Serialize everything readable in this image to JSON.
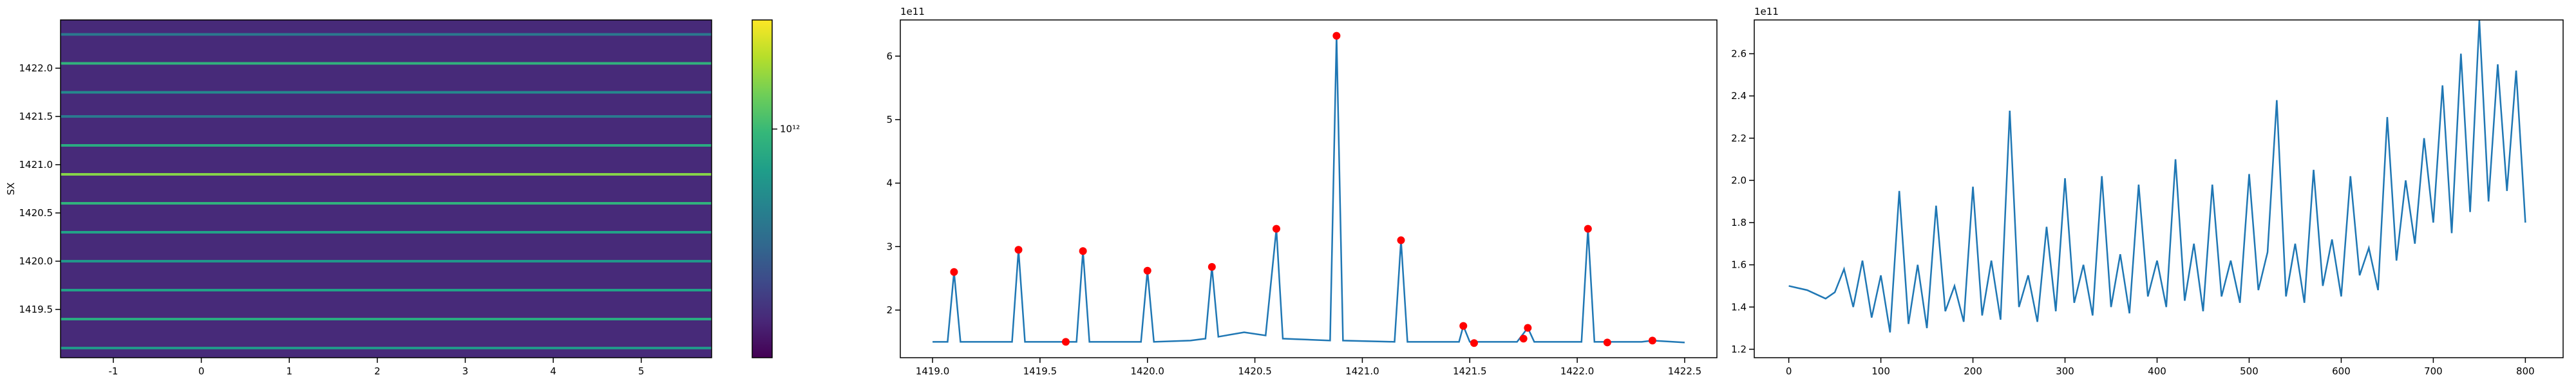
{
  "chart_data": [
    {
      "type": "heatmap",
      "y_label": "SX",
      "xlim": [
        -1.6,
        5.8
      ],
      "xticks": [
        -1,
        0,
        1,
        2,
        3,
        4,
        5
      ],
      "ylim": [
        1419.0,
        1422.5
      ],
      "yticks": [
        {
          "value": 1419.5,
          "label": "1419.5"
        },
        {
          "value": 1420.0,
          "label": "1420.0"
        },
        {
          "value": 1420.5,
          "label": "1420.5"
        },
        {
          "value": 1421.0,
          "label": "1421.0"
        },
        {
          "value": 1421.5,
          "label": "1421.5"
        },
        {
          "value": 1422.0,
          "label": "1422.0"
        }
      ],
      "background": 150000000000.0,
      "stripes": {
        "y": [
          1419.1,
          1419.4,
          1419.7,
          1420.0,
          1420.3,
          1420.6,
          1420.9,
          1421.2,
          1421.5,
          1421.75,
          1422.05,
          1422.35
        ],
        "values": [
          600000000000.0,
          800000000000.0,
          700000000000.0,
          600000000000.0,
          700000000000.0,
          900000000000.0,
          1600000000000.0,
          800000000000.0,
          400000000000.0,
          500000000000.0,
          900000000000.0,
          400000000000.0
        ]
      },
      "colorbar": {
        "log": true,
        "lim": [
          100000000000.0,
          3000000000000.0
        ],
        "ticks": [
          {
            "value": 1000000000000.0,
            "label": "10¹²"
          }
        ]
      }
    },
    {
      "type": "line",
      "offset_label": "1e11",
      "xlim": [
        1418.85,
        1422.65
      ],
      "xticks": [
        {
          "value": 1419.0,
          "label": "1419.0"
        },
        1419.5,
        {
          "value": 1420.0,
          "label": "1420.0"
        },
        1420.5,
        {
          "value": 1421.0,
          "label": "1421.0"
        },
        1421.5,
        {
          "value": 1422.0,
          "label": "1422.0"
        },
        1422.5
      ],
      "ylim": [
        1.25,
        6.57
      ],
      "yticks": [
        2,
        3,
        4,
        5,
        6
      ],
      "series": [
        {
          "color": "#1f77b4",
          "style": "line",
          "x": [
            1419.0,
            1419.07,
            1419.1,
            1419.13,
            1419.37,
            1419.4,
            1419.43,
            1419.67,
            1419.7,
            1419.73,
            1419.97,
            1420.0,
            1420.03,
            1420.2,
            1420.27,
            1420.3,
            1420.33,
            1420.45,
            1420.55,
            1420.6,
            1420.63,
            1420.85,
            1420.88,
            1420.91,
            1421.15,
            1421.18,
            1421.21,
            1421.45,
            1421.47,
            1421.5,
            1421.72,
            1421.77,
            1421.8,
            1422.02,
            1422.05,
            1422.08,
            1422.3,
            1422.35,
            1422.5
          ],
          "values": [
            1.5,
            1.5,
            2.6,
            1.5,
            1.5,
            2.95,
            1.5,
            1.5,
            2.93,
            1.5,
            1.5,
            2.62,
            1.5,
            1.52,
            1.55,
            2.68,
            1.58,
            1.65,
            1.6,
            3.28,
            1.55,
            1.52,
            6.32,
            1.52,
            1.5,
            3.1,
            1.5,
            1.5,
            1.75,
            1.5,
            1.5,
            1.72,
            1.5,
            1.5,
            3.28,
            1.5,
            1.5,
            1.52,
            1.49
          ]
        },
        {
          "color": "#ff0000",
          "style": "markers",
          "x": [
            1419.1,
            1419.4,
            1419.62,
            1419.7,
            1420.0,
            1420.3,
            1420.6,
            1420.88,
            1421.18,
            1421.47,
            1421.52,
            1421.75,
            1421.77,
            1422.05,
            1422.14,
            1422.35
          ],
          "values": [
            2.6,
            2.95,
            1.5,
            2.93,
            2.62,
            2.68,
            3.28,
            6.32,
            3.1,
            1.75,
            1.48,
            1.55,
            1.72,
            3.28,
            1.49,
            1.52
          ]
        }
      ]
    },
    {
      "type": "line",
      "offset_label": "1e11",
      "xlim": [
        -37.5,
        841
      ],
      "xticks": [
        0,
        100,
        200,
        300,
        400,
        500,
        600,
        700,
        800
      ],
      "ylim": [
        1.16,
        2.76
      ],
      "yticks": [
        1.2,
        1.4,
        1.6,
        1.8,
        {
          "value": 2.0,
          "label": "2.0"
        },
        2.2,
        2.4,
        2.6
      ],
      "series": [
        {
          "color": "#1f77b4",
          "style": "line",
          "x": [
            0,
            10,
            20,
            30,
            40,
            50,
            60,
            70,
            80,
            90,
            100,
            110,
            120,
            130,
            140,
            150,
            160,
            170,
            180,
            190,
            200,
            210,
            220,
            230,
            240,
            250,
            260,
            270,
            280,
            290,
            300,
            310,
            320,
            330,
            340,
            350,
            360,
            370,
            380,
            390,
            400,
            410,
            420,
            430,
            440,
            450,
            460,
            470,
            480,
            490,
            500,
            510,
            520,
            530,
            540,
            550,
            560,
            570,
            580,
            590,
            600,
            610,
            620,
            630,
            640,
            650,
            660,
            670,
            680,
            690,
            700,
            710,
            720,
            730,
            740,
            750,
            760,
            770,
            780,
            790,
            800
          ],
          "values": [
            1.5,
            1.49,
            1.48,
            1.46,
            1.44,
            1.47,
            1.58,
            1.4,
            1.62,
            1.35,
            1.55,
            1.28,
            1.95,
            1.32,
            1.6,
            1.3,
            1.88,
            1.38,
            1.5,
            1.33,
            1.97,
            1.36,
            1.62,
            1.34,
            2.33,
            1.4,
            1.55,
            1.33,
            1.78,
            1.38,
            2.01,
            1.42,
            1.6,
            1.36,
            2.02,
            1.4,
            1.65,
            1.37,
            1.98,
            1.45,
            1.62,
            1.4,
            2.1,
            1.43,
            1.7,
            1.38,
            1.98,
            1.45,
            1.62,
            1.42,
            2.03,
            1.48,
            1.66,
            2.38,
            1.45,
            1.7,
            1.42,
            2.05,
            1.5,
            1.72,
            1.45,
            2.02,
            1.55,
            1.68,
            1.48,
            2.3,
            1.62,
            2.0,
            1.7,
            2.2,
            1.8,
            2.45,
            1.75,
            2.6,
            1.85,
            2.76,
            1.9,
            2.55,
            1.95,
            2.52,
            1.8
          ]
        }
      ]
    }
  ]
}
